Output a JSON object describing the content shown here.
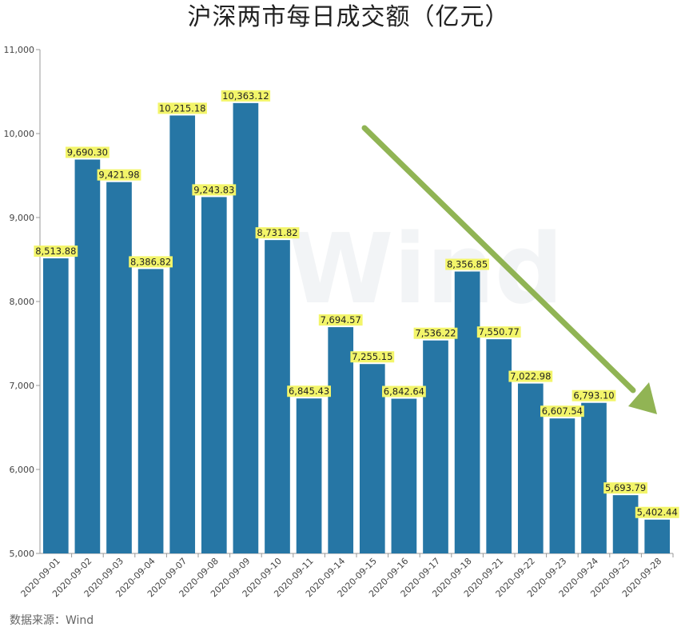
{
  "title": "沪深两市每日成交额（亿元）",
  "source_note": "数据来源：Wind",
  "watermark": "Wind",
  "colors": {
    "bar": "#2676a5",
    "label_bg": "#f3f56a",
    "arrow": "#8bb04b",
    "axis": "#999999"
  },
  "chart_data": {
    "type": "bar",
    "title": "沪深两市每日成交额（亿元）",
    "xlabel": "",
    "ylabel": "",
    "ylim": [
      5000,
      11000
    ],
    "yticks": [
      5000,
      6000,
      7000,
      8000,
      9000,
      10000,
      11000
    ],
    "ytick_labels": [
      "5,000",
      "6,000",
      "7,000",
      "8,000",
      "9,000",
      "10,000",
      "11,000"
    ],
    "grid": false,
    "legend": "none",
    "categories": [
      "2020-09-01",
      "2020-09-02",
      "2020-09-03",
      "2020-09-04",
      "2020-09-07",
      "2020-09-08",
      "2020-09-09",
      "2020-09-10",
      "2020-09-11",
      "2020-09-14",
      "2020-09-15",
      "2020-09-16",
      "2020-09-17",
      "2020-09-18",
      "2020-09-21",
      "2020-09-22",
      "2020-09-23",
      "2020-09-24",
      "2020-09-25",
      "2020-09-28"
    ],
    "values": [
      8513.88,
      9690.3,
      9421.98,
      8386.82,
      10215.18,
      9243.83,
      10363.12,
      8731.82,
      6845.43,
      7694.57,
      7255.15,
      6842.64,
      7536.22,
      8356.85,
      7550.77,
      7022.98,
      6607.54,
      6793.1,
      5693.79,
      5402.44
    ],
    "value_labels": [
      "8,513.88",
      "9,690.30",
      "9,421.98",
      "8,386.82",
      "10,215.18",
      "9,243.83",
      "10,363.12",
      "8,731.82",
      "6,845.43",
      "7,694.57",
      "7,255.15",
      "6,842.64",
      "7,536.22",
      "8,356.85",
      "7,550.77",
      "7,022.98",
      "6,607.54",
      "6,793.10",
      "5,693.79",
      "5,402.44"
    ],
    "annotations": [
      {
        "type": "arrow",
        "direction": "down-right",
        "meaning": "declining trend"
      }
    ]
  }
}
